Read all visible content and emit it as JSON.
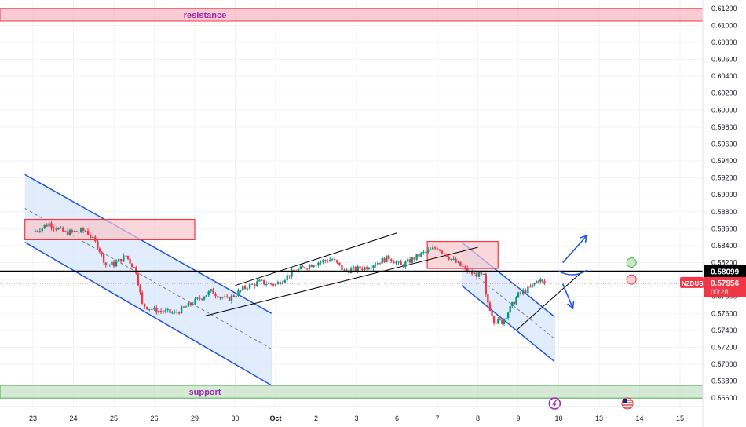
{
  "chart_data": {
    "type": "candlestick",
    "symbol": "NZDUSD",
    "ylim": [
      0.565,
      0.613
    ],
    "y_ticks": [
      "0.61200",
      "0.61000",
      "0.60800",
      "0.60600",
      "0.60400",
      "0.60200",
      "0.60000",
      "0.59800",
      "0.59600",
      "0.59400",
      "0.59200",
      "0.59000",
      "0.58800",
      "0.58600",
      "0.58400",
      "0.58200",
      "0.58000",
      "0.57800",
      "0.57600",
      "0.57400",
      "0.57200",
      "0.57000",
      "0.56800",
      "0.56600"
    ],
    "x_ticks": [
      "23",
      "24",
      "25",
      "26",
      "29",
      "30",
      "Oct",
      "2",
      "3",
      "6",
      "7",
      "8",
      "9",
      "10",
      "13",
      "14",
      "15"
    ],
    "horizontal_line": {
      "value": "0.58099",
      "color": "#000000"
    },
    "last_price": {
      "symbol": "NZDUSD",
      "value": "0.57956",
      "countdown": "00:28",
      "color": "#f23645"
    },
    "zones": [
      {
        "label": "resistance",
        "from": 0.6105,
        "to": 0.612,
        "color": "#f7a9b4"
      },
      {
        "label": "support",
        "from": 0.566,
        "to": 0.5675,
        "color": "#b7dcb8"
      }
    ],
    "close_path": [
      {
        "x": 0.0,
        "close": 0.5856
      },
      {
        "x": 0.4,
        "close": 0.5866
      },
      {
        "x": 0.8,
        "close": 0.5855
      },
      {
        "x": 1.3,
        "close": 0.5858
      },
      {
        "x": 1.6,
        "close": 0.584
      },
      {
        "x": 1.8,
        "close": 0.5818
      },
      {
        "x": 2.0,
        "close": 0.5818
      },
      {
        "x": 2.3,
        "close": 0.5828
      },
      {
        "x": 2.55,
        "close": 0.581
      },
      {
        "x": 2.7,
        "close": 0.577
      },
      {
        "x": 3.0,
        "close": 0.5764
      },
      {
        "x": 3.5,
        "close": 0.576
      },
      {
        "x": 3.9,
        "close": 0.5771
      },
      {
        "x": 4.4,
        "close": 0.5786
      },
      {
        "x": 4.8,
        "close": 0.5776
      },
      {
        "x": 5.3,
        "close": 0.5792
      },
      {
        "x": 5.6,
        "close": 0.5797
      },
      {
        "x": 6.0,
        "close": 0.5794
      },
      {
        "x": 6.4,
        "close": 0.5808
      },
      {
        "x": 7.0,
        "close": 0.582
      },
      {
        "x": 7.4,
        "close": 0.5824
      },
      {
        "x": 7.7,
        "close": 0.581
      },
      {
        "x": 8.2,
        "close": 0.5814
      },
      {
        "x": 8.8,
        "close": 0.5826
      },
      {
        "x": 9.1,
        "close": 0.5816
      },
      {
        "x": 9.6,
        "close": 0.583
      },
      {
        "x": 10.0,
        "close": 0.5838
      },
      {
        "x": 10.4,
        "close": 0.5822
      },
      {
        "x": 10.8,
        "close": 0.5808
      },
      {
        "x": 11.2,
        "close": 0.5803
      },
      {
        "x": 11.2,
        "close": 0.578
      },
      {
        "x": 11.4,
        "close": 0.5752
      },
      {
        "x": 11.6,
        "close": 0.575
      },
      {
        "x": 11.8,
        "close": 0.5766
      },
      {
        "x": 12.0,
        "close": 0.5782
      },
      {
        "x": 12.3,
        "close": 0.579
      },
      {
        "x": 12.5,
        "close": 0.58
      },
      {
        "x": 12.65,
        "close": 0.5795
      }
    ],
    "annotations": {
      "rects": [
        {
          "x1": -0.2,
          "x2": 4.0,
          "y1": 0.5847,
          "y2": 0.5871,
          "fill": "#f7c6cc",
          "stroke": "#f23645"
        },
        {
          "x1": 9.75,
          "x2": 11.5,
          "y1": 0.5813,
          "y2": 0.5845,
          "fill": "#f7c6cc",
          "stroke": "#f23645"
        }
      ],
      "channels": [
        {
          "upper": [
            [
              -0.2,
              0.5924
            ],
            [
              5.9,
              0.576
            ]
          ],
          "lower": [
            [
              -0.2,
              0.5844
            ],
            [
              5.9,
              0.5675
            ]
          ],
          "mid": [
            [
              -0.2,
              0.5884
            ],
            [
              5.9,
              0.5718
            ]
          ],
          "fill": "#d7e7fb",
          "stroke": "#1e53e5"
        },
        {
          "upper": [
            [
              10.6,
              0.5844
            ],
            [
              12.9,
              0.5756
            ]
          ],
          "lower": [
            [
              10.6,
              0.5793
            ],
            [
              12.9,
              0.5703
            ]
          ],
          "mid": [
            [
              10.6,
              0.5818
            ],
            [
              12.9,
              0.573
            ]
          ],
          "fill": "#d7e7fb",
          "stroke": "#1e53e5"
        }
      ],
      "lines": [
        {
          "points": [
            [
              5.0,
              0.5793
            ],
            [
              9.0,
              0.5855
            ]
          ],
          "color": "#000000"
        },
        {
          "points": [
            [
              4.25,
              0.5757
            ],
            [
              11.0,
              0.5838
            ]
          ],
          "color": "#000000"
        },
        {
          "points": [
            [
              11.95,
              0.574
            ],
            [
              13.6,
              0.581
            ]
          ],
          "color": "#000000"
        }
      ],
      "arrows": [
        {
          "from": [
            13.1,
            0.582
          ],
          "to": [
            13.7,
            0.5852
          ],
          "color": "#1e53e5"
        },
        {
          "from": [
            13.1,
            0.5795
          ],
          "to": [
            13.35,
            0.5766
          ],
          "color": "#1e53e5"
        }
      ],
      "curve": {
        "from": [
          13.0,
          0.581
        ],
        "to": [
          13.7,
          0.5811
        ],
        "color": "#1e53e5"
      },
      "circles": [
        {
          "x": 14.8,
          "y": 0.582,
          "fill": "#c8e6c9",
          "stroke": "#4caf50"
        },
        {
          "x": 14.8,
          "y": 0.58,
          "fill": "#ffcdd2",
          "stroke": "#f23645"
        }
      ]
    },
    "event_icons": [
      {
        "name": "dividend-icon",
        "x": 12.9
      },
      {
        "name": "us-flag-icon",
        "x": 14.7
      }
    ]
  }
}
